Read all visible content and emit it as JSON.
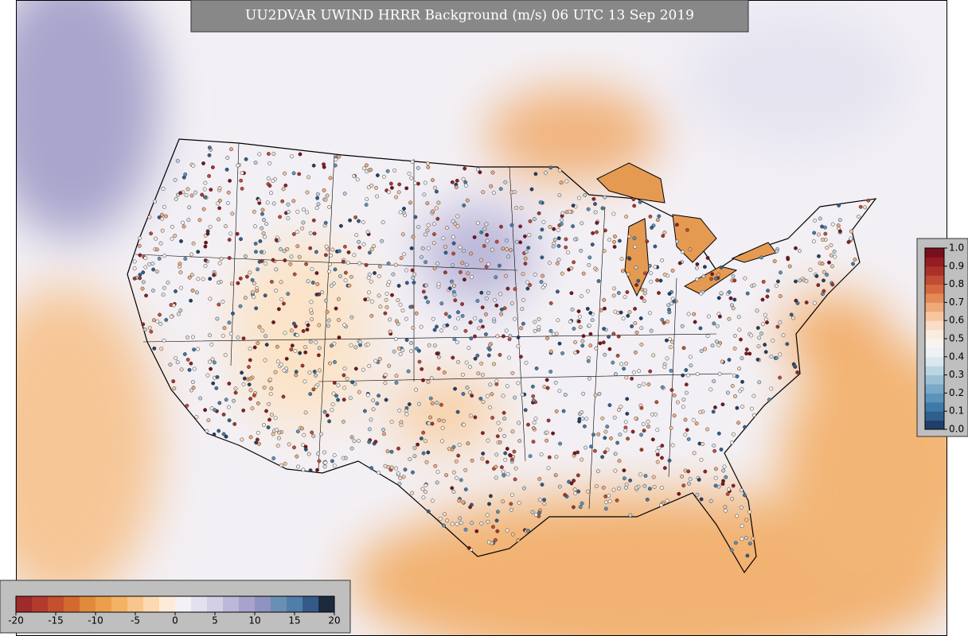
{
  "title": "UU2DVAR UWIND HRRR Background (m/s) 06 UTC 13 Sep 2019",
  "field_colorbar": {
    "lim": [
      -20,
      20
    ],
    "ticks": [
      -20,
      -15,
      -10,
      -5,
      0,
      5,
      10,
      15,
      20
    ],
    "colors": [
      "#9e2a2b",
      "#b33b2e",
      "#c4502f",
      "#d4692f",
      "#e08a3c",
      "#ec9f4a",
      "#f4b267",
      "#f8c68c",
      "#fbd9b2",
      "#fdebd8",
      "#f3f0f6",
      "#e4e1ef",
      "#d2cfe6",
      "#bcb8da",
      "#a7a3cc",
      "#8e93c0",
      "#6a8fb4",
      "#4f7ea8",
      "#345a8a",
      "#1c2a3e"
    ]
  },
  "obs_colorbar": {
    "lim": [
      0,
      1
    ],
    "ticks": [
      {
        "value": 0,
        "label": "0.0"
      },
      0.1,
      0.2,
      0.3,
      0.4,
      0.5,
      0.6,
      0.7,
      0.8,
      0.9,
      {
        "value": 1,
        "label": "1.0"
      }
    ],
    "colors": [
      "#1f3f6b",
      "#2e5f8f",
      "#3f79a7",
      "#5b93bb",
      "#7aa9c9",
      "#9bc0d6",
      "#bcd5e3",
      "#dbe7ef",
      "#eef2f6",
      "#f7f4f2",
      "#fbece0",
      "#fbdcc4",
      "#f7c69f",
      "#f0a97a",
      "#e38b57",
      "#d4693f",
      "#c24b33",
      "#ab3128",
      "#941c22",
      "#7a0f1c"
    ]
  }
}
